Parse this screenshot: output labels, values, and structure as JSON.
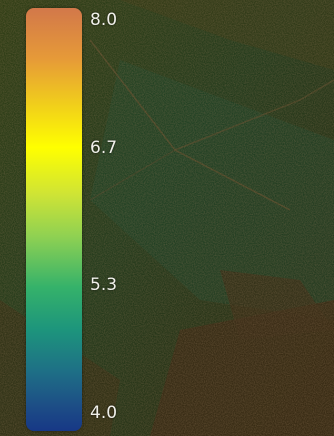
{
  "legend": {
    "ticks": [
      {
        "label": "8.0",
        "value": 8.0
      },
      {
        "label": "6.7",
        "value": 6.7
      },
      {
        "label": "5.3",
        "value": 5.3
      },
      {
        "label": "4.0",
        "value": 4.0
      }
    ],
    "range": [
      4.0,
      8.0
    ],
    "colors": [
      "#173886",
      "#1e6f86",
      "#35b26a",
      "#8fd152",
      "#ffff00",
      "#e69a38",
      "#d2784a"
    ]
  }
}
